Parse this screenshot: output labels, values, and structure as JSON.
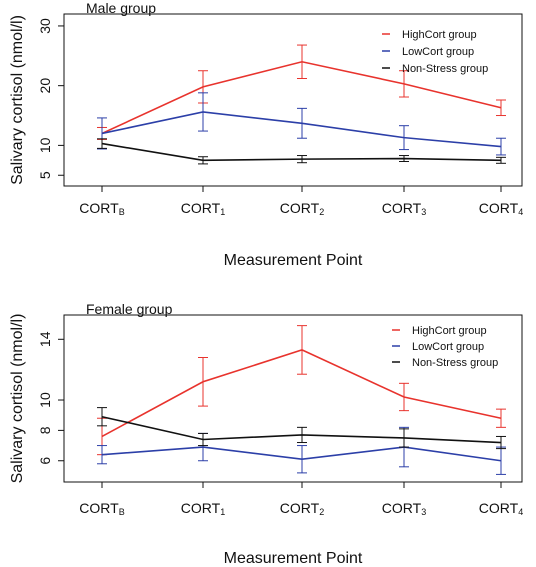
{
  "chart_data": [
    {
      "type": "line",
      "title": "Male group",
      "xlabel": "Measurement Point",
      "ylabel": "Salivary cortisol (nmol/l)",
      "categories": [
        {
          "main": "CORT",
          "sub": "B"
        },
        {
          "main": "CORT",
          "sub": "1"
        },
        {
          "main": "CORT",
          "sub": "2"
        },
        {
          "main": "CORT",
          "sub": "3"
        },
        {
          "main": "CORT",
          "sub": "4"
        }
      ],
      "yticks": [
        5,
        10,
        20,
        30
      ],
      "ylim": [
        3.2,
        32
      ],
      "legend_position": "top-right",
      "series": [
        {
          "name": "HighCort group",
          "color": "#e8332d",
          "values": [
            12.0,
            19.8,
            24.0,
            20.3,
            16.3
          ],
          "errors": [
            1.0,
            2.7,
            2.8,
            2.2,
            1.3
          ]
        },
        {
          "name": "LowCort group",
          "color": "#2c3fa8",
          "values": [
            12.0,
            15.6,
            13.7,
            11.3,
            9.8
          ],
          "errors": [
            2.6,
            3.2,
            2.5,
            2.0,
            1.4
          ]
        },
        {
          "name": "Non-Stress group",
          "color": "#111111",
          "values": [
            10.3,
            7.5,
            7.7,
            7.8,
            7.5
          ],
          "errors": [
            0.8,
            0.6,
            0.6,
            0.5,
            0.5
          ]
        }
      ]
    },
    {
      "type": "line",
      "title": "Female group",
      "xlabel": "Measurement Point",
      "ylabel": "Salivary cortisol (nmol/l)",
      "categories": [
        {
          "main": "CORT",
          "sub": "B"
        },
        {
          "main": "CORT",
          "sub": "1"
        },
        {
          "main": "CORT",
          "sub": "2"
        },
        {
          "main": "CORT",
          "sub": "3"
        },
        {
          "main": "CORT",
          "sub": "4"
        }
      ],
      "yticks": [
        6,
        8,
        10,
        14
      ],
      "ylim": [
        4.6,
        15.6
      ],
      "legend_position": "top-right",
      "series": [
        {
          "name": "HighCort group",
          "color": "#e8332d",
          "values": [
            7.6,
            11.2,
            13.3,
            10.2,
            8.8
          ],
          "errors": [
            1.2,
            1.6,
            1.6,
            0.9,
            0.6
          ]
        },
        {
          "name": "LowCort group",
          "color": "#2c3fa8",
          "values": [
            6.4,
            6.9,
            6.1,
            6.9,
            6.0
          ],
          "errors": [
            0.6,
            0.9,
            0.9,
            1.3,
            0.9
          ]
        },
        {
          "name": "Non-Stress group",
          "color": "#111111",
          "values": [
            8.9,
            7.4,
            7.7,
            7.5,
            7.2
          ],
          "errors": [
            0.6,
            0.4,
            0.5,
            0.6,
            0.4
          ]
        }
      ]
    }
  ]
}
